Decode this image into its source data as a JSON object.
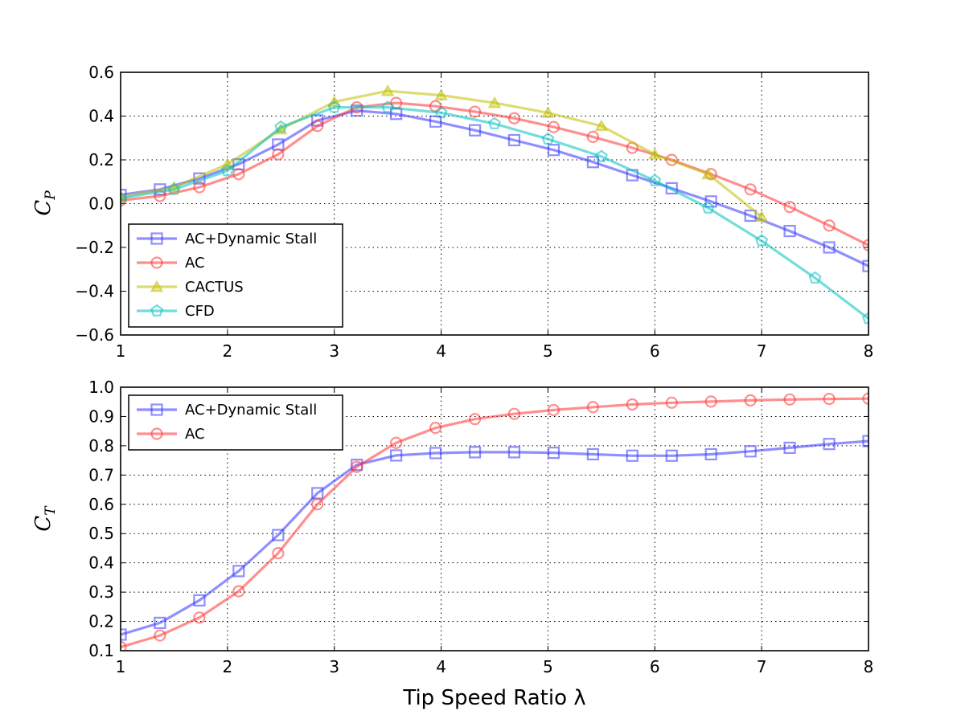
{
  "chart_data": [
    {
      "type": "line",
      "ylabel_main": "C",
      "ylabel_sub": "P",
      "xlim": [
        1,
        8
      ],
      "ylim": [
        -0.6,
        0.6
      ],
      "xticks": [
        "1",
        "2",
        "3",
        "4",
        "5",
        "6",
        "7",
        "8"
      ],
      "yticks": [
        "0.6",
        "0.4",
        "0.2",
        "0.0",
        "−0.2",
        "−0.4",
        "−0.6"
      ],
      "grid": true,
      "legend_position": "lower-left",
      "series": [
        {
          "name": "AC+Dynamic Stall",
          "color": "#3333ff",
          "marker": "square",
          "x": [
            1.0,
            1.368,
            1.737,
            2.105,
            2.474,
            2.842,
            3.211,
            3.579,
            3.947,
            4.316,
            4.684,
            5.053,
            5.421,
            5.789,
            6.158,
            6.526,
            6.895,
            7.263,
            7.632,
            8.0
          ],
          "y": [
            0.04,
            0.065,
            0.115,
            0.18,
            0.27,
            0.38,
            0.425,
            0.41,
            0.375,
            0.335,
            0.29,
            0.245,
            0.19,
            0.13,
            0.07,
            0.01,
            -0.055,
            -0.125,
            -0.2,
            -0.285
          ]
        },
        {
          "name": "AC",
          "color": "#ff3333",
          "marker": "circle",
          "x": [
            1.0,
            1.368,
            1.737,
            2.105,
            2.474,
            2.842,
            3.211,
            3.579,
            3.947,
            4.316,
            4.684,
            5.053,
            5.421,
            5.789,
            6.158,
            6.526,
            6.895,
            7.263,
            7.632,
            8.0
          ],
          "y": [
            0.015,
            0.035,
            0.075,
            0.135,
            0.225,
            0.355,
            0.44,
            0.46,
            0.445,
            0.42,
            0.39,
            0.35,
            0.305,
            0.255,
            0.2,
            0.135,
            0.065,
            -0.015,
            -0.1,
            -0.19
          ]
        },
        {
          "name": "CACTUS",
          "color": "#bfbf00",
          "marker": "triangle",
          "x": [
            1.0,
            1.5,
            2.0,
            2.5,
            3.0,
            3.5,
            4.0,
            4.5,
            5.0,
            5.5,
            6.0,
            6.5,
            7.0
          ],
          "y": [
            0.03,
            0.075,
            0.18,
            0.34,
            0.465,
            0.515,
            0.495,
            0.46,
            0.415,
            0.355,
            0.225,
            0.135,
            -0.06
          ]
        },
        {
          "name": "CFD",
          "color": "#00bfbf",
          "marker": "pentagon",
          "x": [
            1.0,
            1.5,
            2.0,
            2.5,
            3.0,
            3.5,
            4.0,
            4.5,
            5.0,
            5.5,
            6.0,
            6.5,
            7.0,
            7.5,
            8.0
          ],
          "y": [
            0.025,
            0.065,
            0.15,
            0.35,
            0.44,
            0.44,
            0.415,
            0.365,
            0.295,
            0.215,
            0.105,
            -0.02,
            -0.17,
            -0.34,
            -0.525
          ]
        }
      ]
    },
    {
      "type": "line",
      "ylabel_main": "C",
      "ylabel_sub": "T",
      "xlabel": "Tip Speed Ratio λ",
      "xlim": [
        1,
        8
      ],
      "ylim": [
        0.1,
        1.0
      ],
      "xticks": [
        "1",
        "2",
        "3",
        "4",
        "5",
        "6",
        "7",
        "8"
      ],
      "yticks": [
        "1.0",
        "0.9",
        "0.8",
        "0.7",
        "0.6",
        "0.5",
        "0.4",
        "0.3",
        "0.2",
        "0.1"
      ],
      "grid": true,
      "legend_position": "upper-left",
      "series": [
        {
          "name": "AC+Dynamic Stall",
          "color": "#3333ff",
          "marker": "square",
          "x": [
            1.0,
            1.368,
            1.737,
            2.105,
            2.474,
            2.842,
            3.211,
            3.579,
            3.947,
            4.316,
            4.684,
            5.053,
            5.421,
            5.789,
            6.158,
            6.526,
            6.895,
            7.263,
            7.632,
            8.0
          ],
          "y": [
            0.155,
            0.195,
            0.272,
            0.372,
            0.495,
            0.638,
            0.735,
            0.767,
            0.775,
            0.778,
            0.778,
            0.776,
            0.771,
            0.766,
            0.766,
            0.771,
            0.781,
            0.793,
            0.806,
            0.816
          ]
        },
        {
          "name": "AC",
          "color": "#ff3333",
          "marker": "circle",
          "x": [
            1.0,
            1.368,
            1.737,
            2.105,
            2.474,
            2.842,
            3.211,
            3.579,
            3.947,
            4.316,
            4.684,
            5.053,
            5.421,
            5.789,
            6.158,
            6.526,
            6.895,
            7.263,
            7.632,
            8.0
          ],
          "y": [
            0.112,
            0.152,
            0.213,
            0.303,
            0.433,
            0.6,
            0.728,
            0.81,
            0.861,
            0.891,
            0.909,
            0.922,
            0.932,
            0.941,
            0.947,
            0.951,
            0.955,
            0.958,
            0.96,
            0.961
          ]
        }
      ]
    }
  ]
}
